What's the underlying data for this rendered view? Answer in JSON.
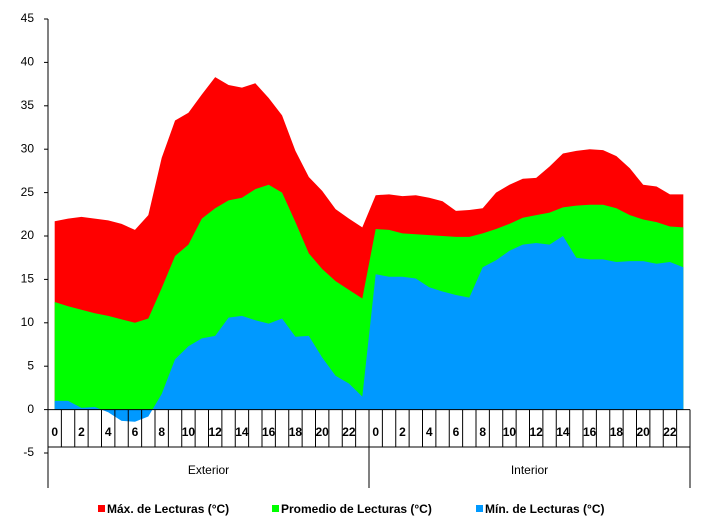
{
  "chart_data": {
    "type": "area",
    "categories": [
      0,
      null,
      2,
      null,
      4,
      null,
      6,
      null,
      8,
      null,
      10,
      null,
      12,
      null,
      14,
      null,
      16,
      null,
      18,
      null,
      20,
      null,
      22,
      null,
      0,
      null,
      2,
      null,
      4,
      null,
      6,
      null,
      8,
      null,
      10,
      null,
      12,
      null,
      14,
      null,
      16,
      null,
      18,
      null,
      20,
      null,
      22,
      null
    ],
    "groups": [
      "Exterior",
      "Interior"
    ],
    "ylim": [
      -5,
      45
    ],
    "yticks": [
      -5,
      0,
      5,
      10,
      15,
      20,
      25,
      30,
      35,
      40,
      45
    ],
    "legend": "bottom",
    "series": [
      {
        "name": "Máx. de Lecturas (°C)",
        "color": "#ff0000",
        "values": [
          21.7,
          22,
          22.2,
          22,
          21.8,
          21.4,
          20.7,
          22.4,
          29,
          33.3,
          34.2,
          36.3,
          38.3,
          37.4,
          37.1,
          37.6,
          35.9,
          33.9,
          29.8,
          26.8,
          25.2,
          23.1,
          22,
          21,
          24.7,
          24.8,
          24.6,
          24.7,
          24.4,
          24,
          22.9,
          23,
          23.2,
          25,
          25.9,
          26.6,
          26.7,
          28,
          29.5,
          29.8,
          30,
          29.9,
          29.2,
          27.8,
          25.9,
          25.7,
          24.8,
          24.8
        ]
      },
      {
        "name": "Promedio de Lecturas (°C)",
        "color": "#00ff00",
        "values": [
          12.4,
          11.9,
          11.5,
          11.1,
          10.8,
          10.4,
          10,
          10.5,
          14,
          17.7,
          19,
          22,
          23.2,
          24.1,
          24.4,
          25.4,
          25.9,
          25,
          21.6,
          18,
          16.2,
          14.8,
          13.8,
          12.8,
          20.8,
          20.7,
          20.3,
          20.2,
          20.1,
          20,
          19.9,
          19.9,
          20.3,
          20.8,
          21.4,
          22.1,
          22.4,
          22.7,
          23.3,
          23.5,
          23.6,
          23.6,
          23.2,
          22.4,
          21.9,
          21.6,
          21.1,
          21
        ]
      },
      {
        "name": "Mín. de Lecturas (°C)",
        "color": "#0099ff",
        "values": [
          1,
          1,
          0.2,
          0.3,
          -0.3,
          -1.3,
          -1.4,
          -0.8,
          1.8,
          5.8,
          7.3,
          8.2,
          8.5,
          10.6,
          10.8,
          10.3,
          9.9,
          10.5,
          8.4,
          8.5,
          6,
          3.9,
          3,
          1.5,
          15.6,
          15.3,
          15.3,
          15.1,
          14.1,
          13.6,
          13.2,
          12.9,
          16.4,
          17.2,
          18.3,
          19,
          19.2,
          19,
          20,
          17.5,
          17.3,
          17.3,
          17,
          17.1,
          17.1,
          16.8,
          17,
          16.4
        ]
      }
    ]
  }
}
